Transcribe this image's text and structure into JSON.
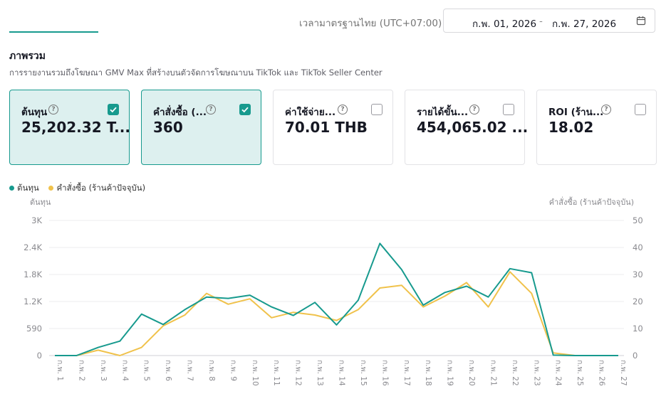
{
  "header": {
    "timezone_label": "เวลามาตรฐานไทย (UTC+07:00)",
    "date_start": "ก.พ. 01, 2026",
    "date_separator": "-",
    "date_end": "ก.พ. 27, 2026",
    "calendar_icon": "calendar-icon"
  },
  "overview": {
    "title": "ภาพรวม",
    "subtitle": "การรายงานรวมถึงโฆษณา GMV Max ที่สร้างบนตัวจัดการโฆษณาบน TikTok และ TikTok Seller Center"
  },
  "metrics": [
    {
      "label": "ต้นทุน",
      "value": "25,202.32 T...",
      "checked": true
    },
    {
      "label": "คำสั่งซื้อ (...",
      "value": "360",
      "checked": true
    },
    {
      "label": "ค่าใช้จ่าย...",
      "value": "70.01 THB",
      "checked": false
    },
    {
      "label": "รายได้ขั้น...",
      "value": "454,065.02 ...",
      "checked": false
    },
    {
      "label": "ROI (ร้าน...",
      "value": "18.02",
      "checked": false
    }
  ],
  "colors": {
    "accent": "#179a8e",
    "secondary": "#f0c24b"
  },
  "chart_data": {
    "type": "line",
    "left_axis_label": "ต้นทุน",
    "right_axis_label": "คำสั่งซื้อ (ร้านค้าปัจจุบัน)",
    "left_ticks": [
      "0",
      "590",
      "1.2K",
      "1.8K",
      "2.4K",
      "3K"
    ],
    "right_ticks": [
      "0",
      "10",
      "20",
      "30",
      "40",
      "50"
    ],
    "ylim_left": [
      0,
      3000
    ],
    "ylim_right": [
      0,
      50
    ],
    "categories": [
      "ก.พ. 1",
      "ก.พ. 2",
      "ก.พ. 3",
      "ก.พ. 4",
      "ก.พ. 5",
      "ก.พ. 6",
      "ก.พ. 7",
      "ก.พ. 8",
      "ก.พ. 9",
      "ก.พ. 10",
      "ก.พ. 11",
      "ก.พ. 12",
      "ก.พ. 13",
      "ก.พ. 14",
      "ก.พ. 15",
      "ก.พ. 16",
      "ก.พ. 17",
      "ก.พ. 18",
      "ก.พ. 19",
      "ก.พ. 20",
      "ก.พ. 21",
      "ก.พ. 22",
      "ก.พ. 23",
      "ก.พ. 24",
      "ก.พ. 25",
      "ก.พ. 26",
      "ก.พ. 27"
    ],
    "series": [
      {
        "name": "ต้นทุน",
        "axis": "left",
        "color": "#179a8e",
        "values": [
          0,
          0,
          180,
          320,
          920,
          690,
          1020,
          1300,
          1270,
          1340,
          1080,
          890,
          1180,
          680,
          1230,
          2490,
          1910,
          1120,
          1400,
          1540,
          1300,
          1930,
          1840,
          10,
          0,
          0,
          0
        ]
      },
      {
        "name": "คำสั่งซื้อ (ร้านค้าปัจจุบัน)",
        "axis": "right",
        "color": "#f0c24b",
        "values": [
          0,
          0,
          2,
          0,
          3,
          11,
          15,
          23,
          19,
          21,
          14,
          16,
          15,
          13,
          17,
          25,
          26,
          18,
          22,
          27,
          18,
          31,
          23,
          1,
          0,
          0,
          0
        ]
      }
    ],
    "grid": true,
    "legend_position": "top-left"
  }
}
